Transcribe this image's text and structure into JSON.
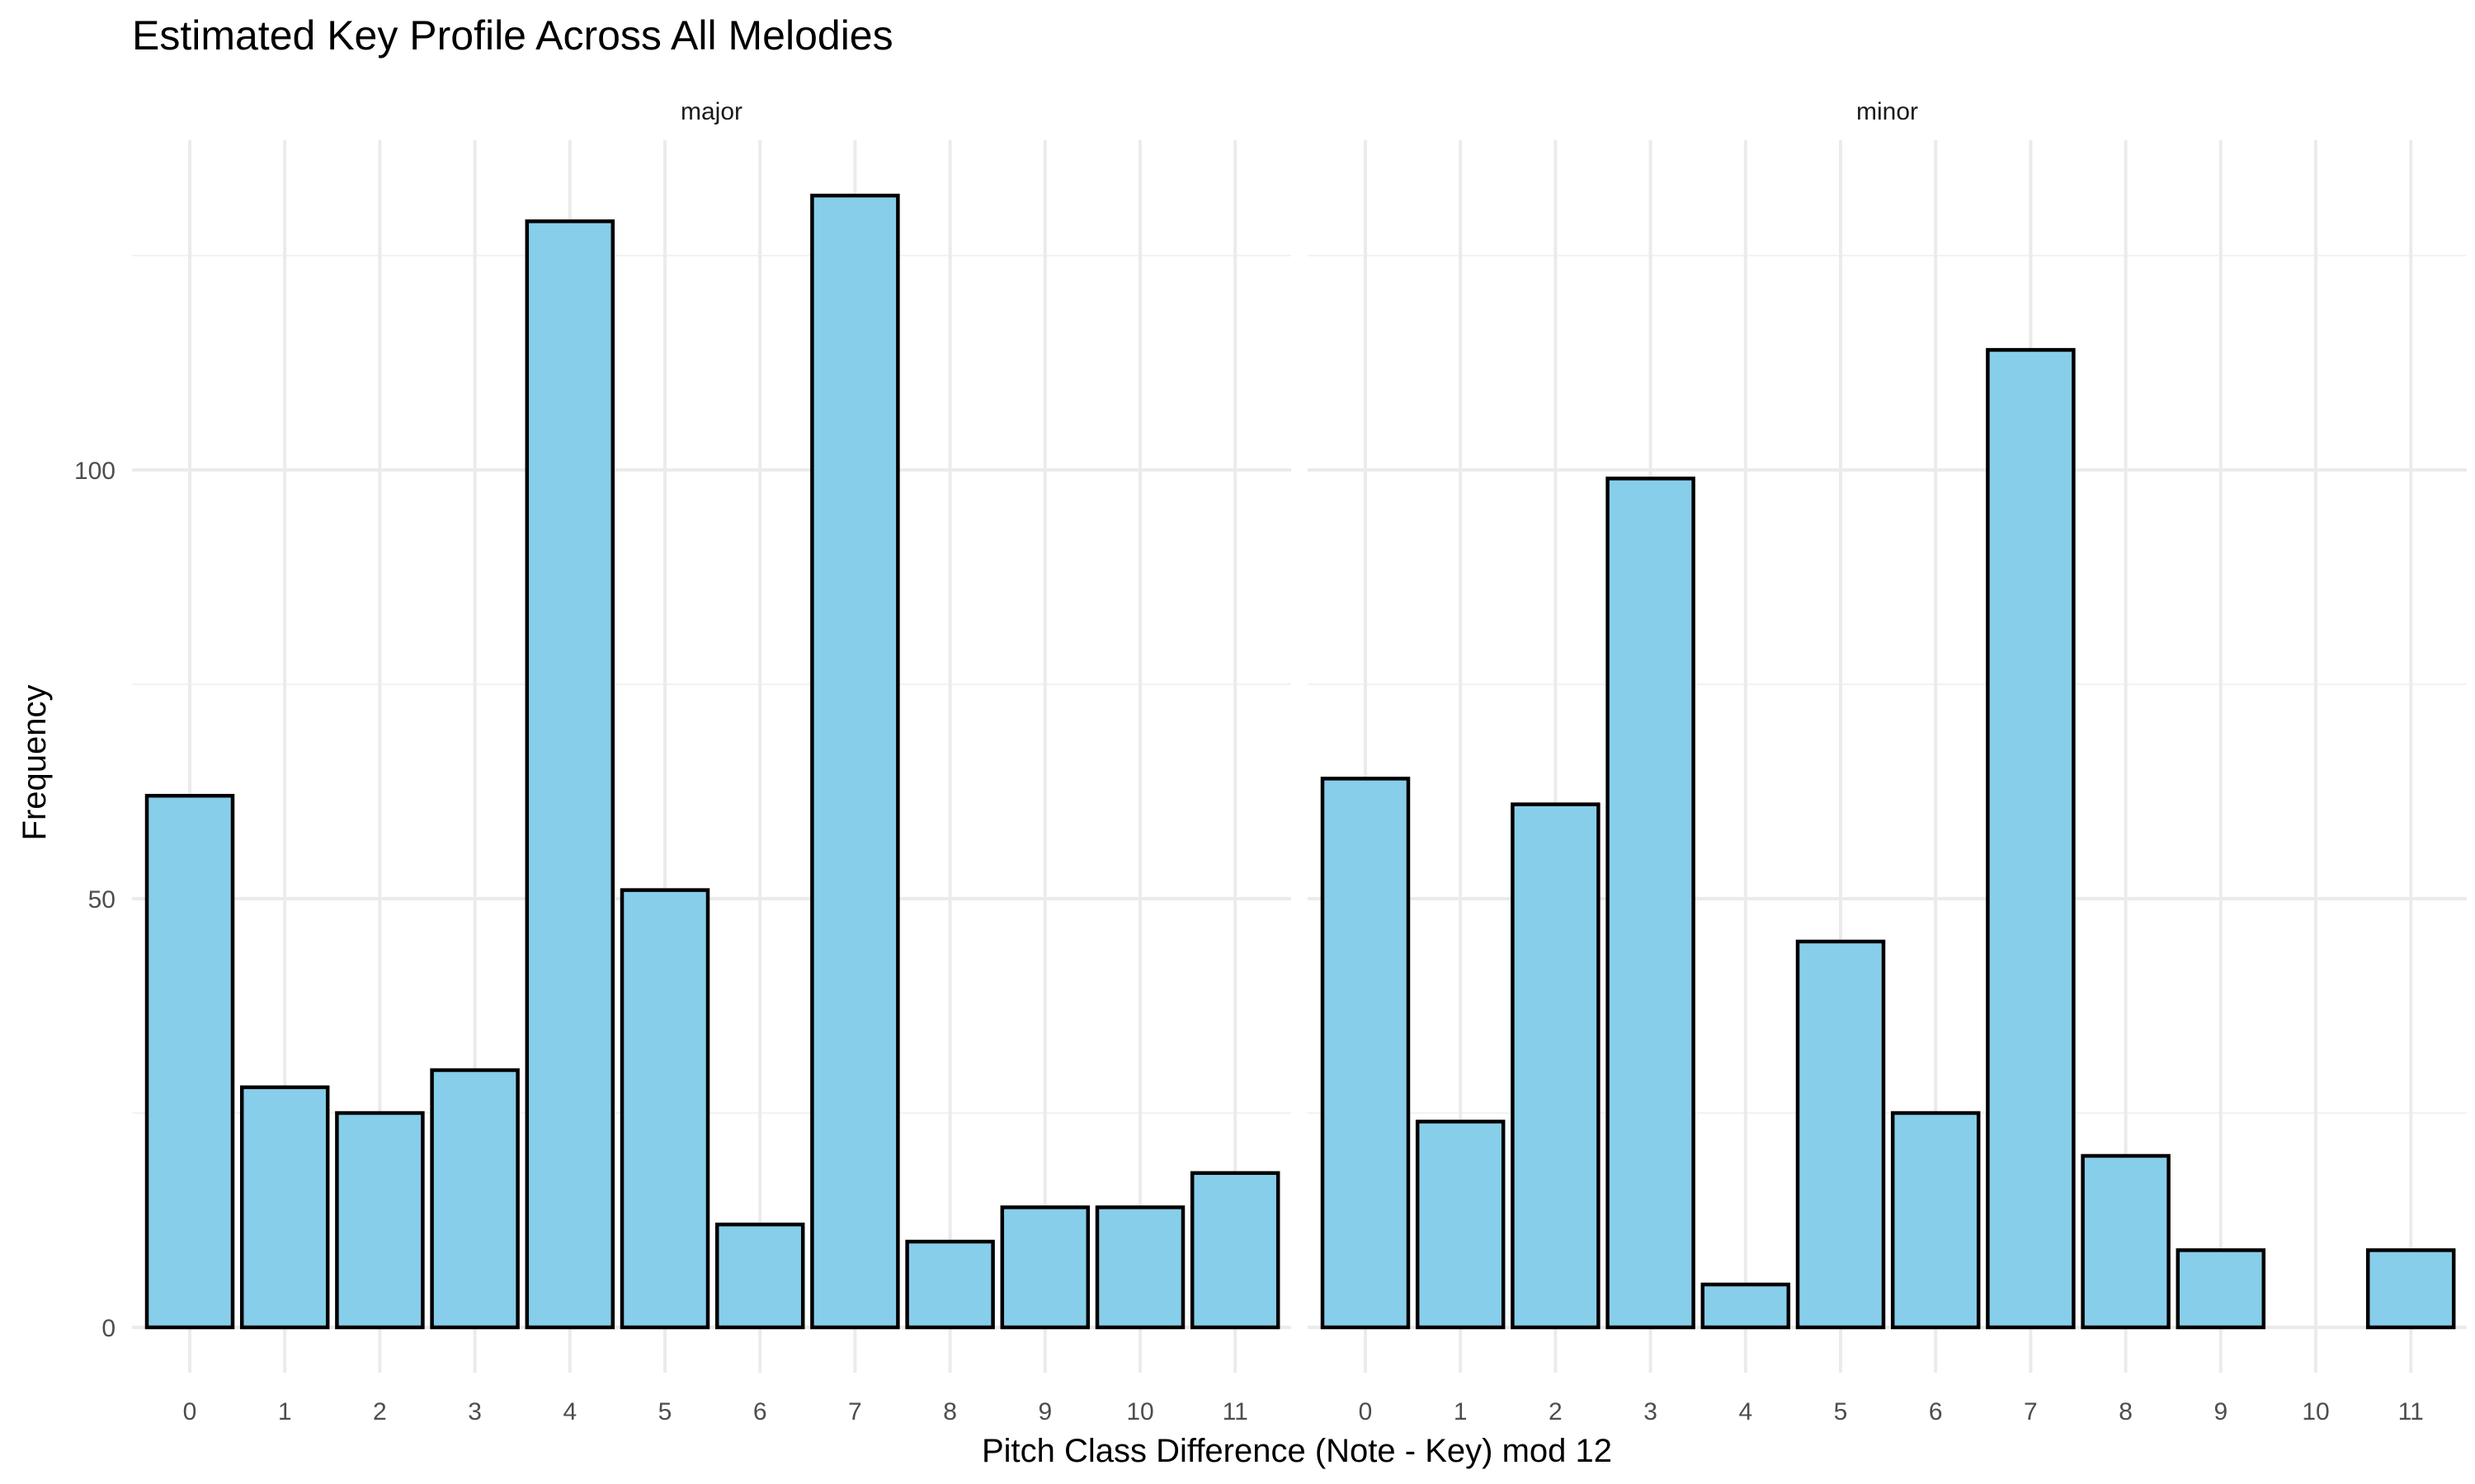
{
  "chart_data": {
    "type": "bar",
    "title": "Estimated Key Profile Across All Melodies",
    "xlabel": "Pitch Class Difference (Note - Key) mod 12",
    "ylabel": "Frequency",
    "categories": [
      "0",
      "1",
      "2",
      "3",
      "4",
      "5",
      "6",
      "7",
      "8",
      "9",
      "10",
      "11"
    ],
    "yticks": [
      0,
      50,
      100
    ],
    "ylim": [
      0,
      139
    ],
    "grid": true,
    "bar_fill": "#87CEEB",
    "bar_outline": "#000000",
    "panels": [
      {
        "strip": "major",
        "values": [
          62,
          28,
          25,
          30,
          129,
          51,
          12,
          132,
          10,
          14,
          14,
          18
        ]
      },
      {
        "strip": "minor",
        "values": [
          64,
          24,
          61,
          99,
          5,
          45,
          25,
          114,
          20,
          9,
          0,
          9
        ]
      }
    ]
  }
}
